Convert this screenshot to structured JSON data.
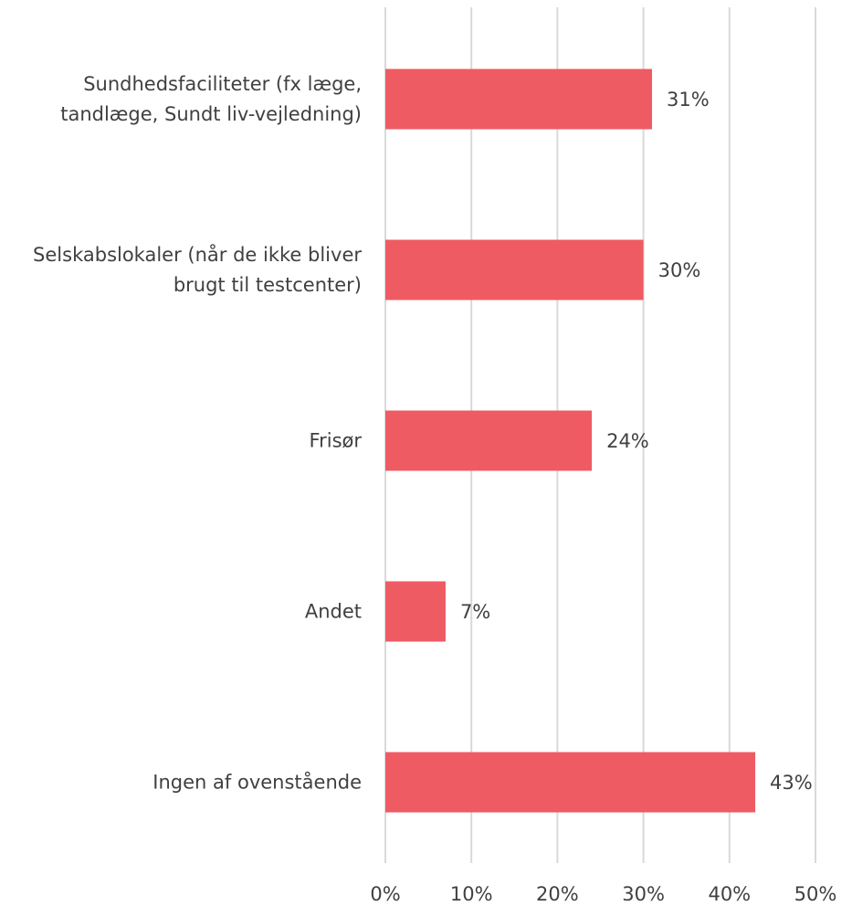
{
  "chart_data": {
    "type": "bar",
    "orientation": "horizontal",
    "categories": [
      "Sundhedsfaciliteter (fx læge, tandlæge, Sundt liv-vejledning)",
      "Selskabslokaler (når de ikke bliver brugt til testcenter)",
      "Frisør",
      "Andet",
      "Ingen af ovenstående"
    ],
    "values": [
      31,
      30,
      24,
      7,
      43
    ],
    "value_labels": [
      "31%",
      "30%",
      "24%",
      "7%",
      "43%"
    ],
    "xlim": [
      0,
      50
    ],
    "x_ticks": [
      0,
      10,
      20,
      30,
      40,
      50
    ],
    "x_tick_labels": [
      "0%",
      "10%",
      "20%",
      "30%",
      "40%",
      "50%"
    ],
    "grid": "vertical",
    "legend": "none",
    "title": "",
    "xlabel": "",
    "ylabel": "",
    "bar_color": "#EF5B63",
    "grid_color": "#D9D9D9"
  }
}
